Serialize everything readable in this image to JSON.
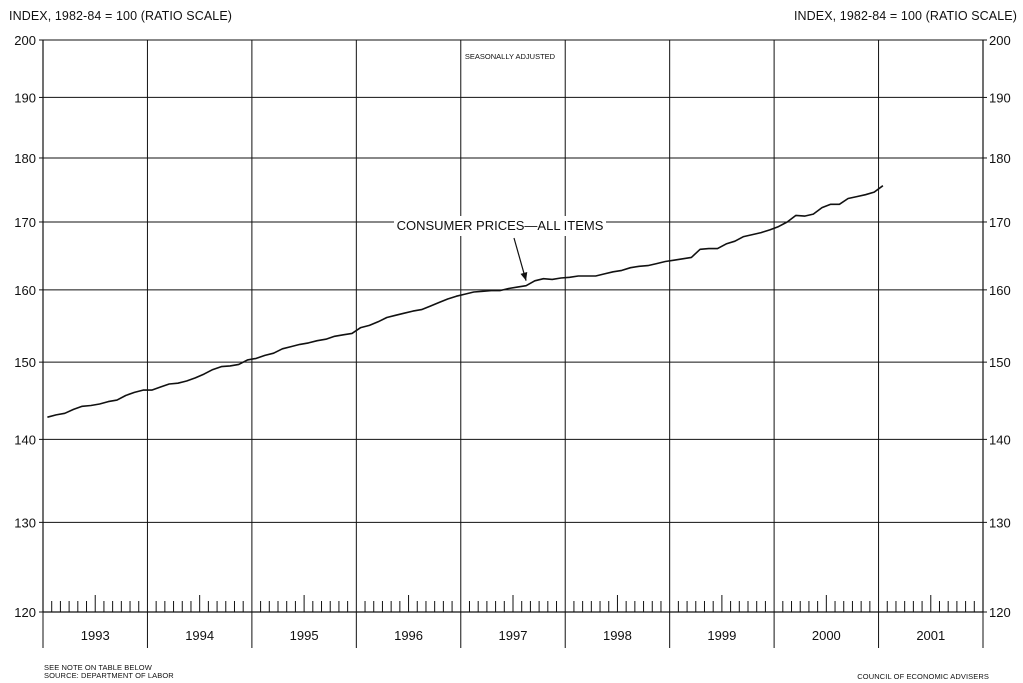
{
  "header": {
    "left_axis_label": "INDEX, 1982-84 = 100 (RATIO SCALE)",
    "right_axis_label": "INDEX, 1982-84 = 100 (RATIO SCALE)"
  },
  "footer": {
    "note_line1": "SEE NOTE ON TABLE BELOW",
    "note_line2": "SOURCE: DEPARTMENT OF LABOR",
    "credit": "COUNCIL OF ECONOMIC ADVISERS"
  },
  "chart_data": {
    "type": "line",
    "subtitle": "SEASONALLY ADJUSTED",
    "yscale": "log",
    "ylim": [
      120,
      200
    ],
    "yticks": [
      120,
      130,
      140,
      150,
      160,
      170,
      180,
      190,
      200
    ],
    "xlim": [
      "1993-01",
      "2001-12"
    ],
    "year_labels": [
      "1993",
      "1994",
      "1995",
      "1996",
      "1997",
      "1998",
      "1999",
      "2000",
      "2001"
    ],
    "grid": true,
    "series_label": "CONSUMER PRICES—ALL ITEMS",
    "series": [
      {
        "start": "1993-01",
        "frequency": "monthly",
        "values": [
          142.8,
          143.1,
          143.3,
          143.8,
          144.2,
          144.3,
          144.5,
          144.8,
          145.0,
          145.6,
          146.0,
          146.3,
          146.3,
          146.7,
          147.1,
          147.2,
          147.5,
          147.9,
          148.4,
          149.0,
          149.4,
          149.5,
          149.7,
          150.3,
          150.5,
          150.9,
          151.2,
          151.8,
          152.1,
          152.4,
          152.6,
          152.9,
          153.1,
          153.5,
          153.7,
          153.9,
          154.7,
          155.0,
          155.5,
          156.1,
          156.4,
          156.7,
          157.0,
          157.2,
          157.7,
          158.2,
          158.7,
          159.1,
          159.4,
          159.7,
          159.8,
          159.9,
          159.9,
          160.2,
          160.4,
          160.6,
          161.3,
          161.6,
          161.5,
          161.7,
          161.8,
          162.0,
          162.0,
          162.0,
          162.3,
          162.6,
          162.8,
          163.2,
          163.4,
          163.5,
          163.8,
          164.1,
          164.3,
          164.5,
          164.7,
          165.9,
          166.0,
          166.0,
          166.7,
          167.1,
          167.8,
          168.1,
          168.4,
          168.8,
          169.3,
          170.0,
          171.0,
          170.9,
          171.2,
          172.2,
          172.7,
          172.7,
          173.6,
          173.9,
          174.2,
          174.6,
          175.6
        ]
      }
    ],
    "annotations": [
      {
        "text": "CONSUMER PRICES—ALL ITEMS",
        "points_to": "1997-08"
      }
    ]
  }
}
